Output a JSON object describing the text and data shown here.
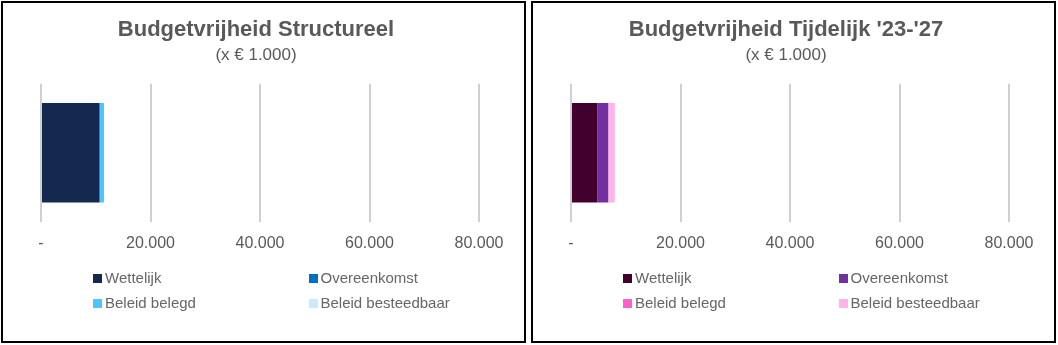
{
  "chart_data": [
    {
      "type": "bar",
      "title": "Budgetvrijheid Structureel",
      "subtitle": "(x € 1.000)",
      "orientation": "horizontal",
      "stacked": true,
      "categories": [
        null
      ],
      "series": [
        {
          "name": "Wettelijk",
          "color": "#142850",
          "values": [
            10700
          ]
        },
        {
          "name": "Overeenkomst",
          "color": "#0070c0",
          "values": [
            0
          ]
        },
        {
          "name": "Beleid belegd",
          "color": "#4dc3ff",
          "values": [
            800
          ]
        },
        {
          "name": "Beleid besteedbaar",
          "color": "#c9ecfc",
          "values": [
            0
          ]
        }
      ],
      "xlim": [
        0,
        80000
      ],
      "xticks": [
        {
          "value": 0,
          "label": "-"
        },
        {
          "value": 20000,
          "label": "20.000"
        },
        {
          "value": 40000,
          "label": "40.000"
        },
        {
          "value": 60000,
          "label": "60.000"
        },
        {
          "value": 80000,
          "label": "80.000"
        }
      ],
      "grid": "x",
      "legend": "bottom"
    },
    {
      "type": "bar",
      "title": "Budgetvrijheid Tijdelijk '23-'27",
      "subtitle": "(x € 1.000)",
      "orientation": "horizontal",
      "stacked": true,
      "categories": [
        null
      ],
      "series": [
        {
          "name": "Wettelijk",
          "color": "#42002e",
          "values": [
            4800
          ]
        },
        {
          "name": "Overeenkomst",
          "color": "#7030a0",
          "values": [
            2000
          ]
        },
        {
          "name": "Beleid belegd",
          "color": "#ff5fc8",
          "values": [
            0
          ]
        },
        {
          "name": "Beleid besteedbaar",
          "color": "#ffb3e8",
          "values": [
            1200
          ]
        }
      ],
      "xlim": [
        0,
        80000
      ],
      "xticks": [
        {
          "value": 0,
          "label": "-"
        },
        {
          "value": 20000,
          "label": "20.000"
        },
        {
          "value": 40000,
          "label": "40.000"
        },
        {
          "value": 60000,
          "label": "60.000"
        },
        {
          "value": 80000,
          "label": "80.000"
        }
      ],
      "grid": "x",
      "legend": "bottom"
    }
  ]
}
